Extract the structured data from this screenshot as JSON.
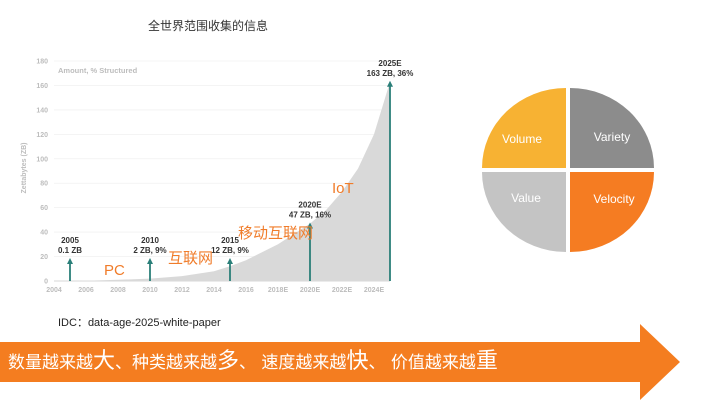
{
  "chart_data": {
    "type": "area",
    "title": "全世界范围收集的信息",
    "ylabel": "Zettabytes (ZB)",
    "note": "Amount, % Structured",
    "ylim": [
      0,
      180
    ],
    "y_ticks": [
      0,
      20,
      40,
      60,
      80,
      100,
      120,
      140,
      160,
      180
    ],
    "x_ticks": [
      "2004",
      "2006",
      "2008",
      "2010",
      "2012",
      "2014",
      "2016",
      "2018E",
      "2020E",
      "2022E",
      "2024E"
    ],
    "x": [
      2005,
      2006,
      2008,
      2010,
      2012,
      2014,
      2015,
      2016,
      2018,
      2020,
      2021,
      2022,
      2023,
      2024,
      2025
    ],
    "values": [
      0.1,
      0.2,
      1,
      2,
      4,
      8,
      12,
      17,
      30,
      47,
      58,
      73,
      92,
      120,
      163
    ],
    "annotations": [
      {
        "year": 2005,
        "value": 0.1,
        "label": "2005",
        "sub": "0.1 ZB"
      },
      {
        "year": 2010,
        "value": 2,
        "label": "2010",
        "sub": "2 ZB, 9%"
      },
      {
        "year": 2015,
        "value": 12,
        "label": "2015",
        "sub": "12 ZB, 9%"
      },
      {
        "year": 2020,
        "value": 47,
        "label": "2020E",
        "sub": "47 ZB, 16%"
      },
      {
        "year": 2025,
        "value": 163,
        "label": "2025E",
        "sub": "163 ZB, 36%"
      }
    ],
    "eras": [
      "PC",
      "互联网",
      "移动互联网",
      "IoT"
    ],
    "colors": {
      "area": "#d9d9d9",
      "arrow": "#2a7f79",
      "era": "#f07c2a"
    }
  },
  "source": "IDC：data-age-2025-white-paper",
  "quadrants": [
    {
      "label": "Volume",
      "color": "#f7b233"
    },
    {
      "label": "Variety",
      "color": "#8c8c8c"
    },
    {
      "label": "Value",
      "color": "#c4c4c4"
    },
    {
      "label": "Velocity",
      "color": "#f57c22"
    }
  ],
  "banner": {
    "p1": "数量越来越",
    "b1": "大",
    "p2": "、种类越来越",
    "b2": "多",
    "p3": "、 速度越来越",
    "b3": "快",
    "p4": "、 价值越来越",
    "b4": "重",
    "color": "#f47d20"
  }
}
